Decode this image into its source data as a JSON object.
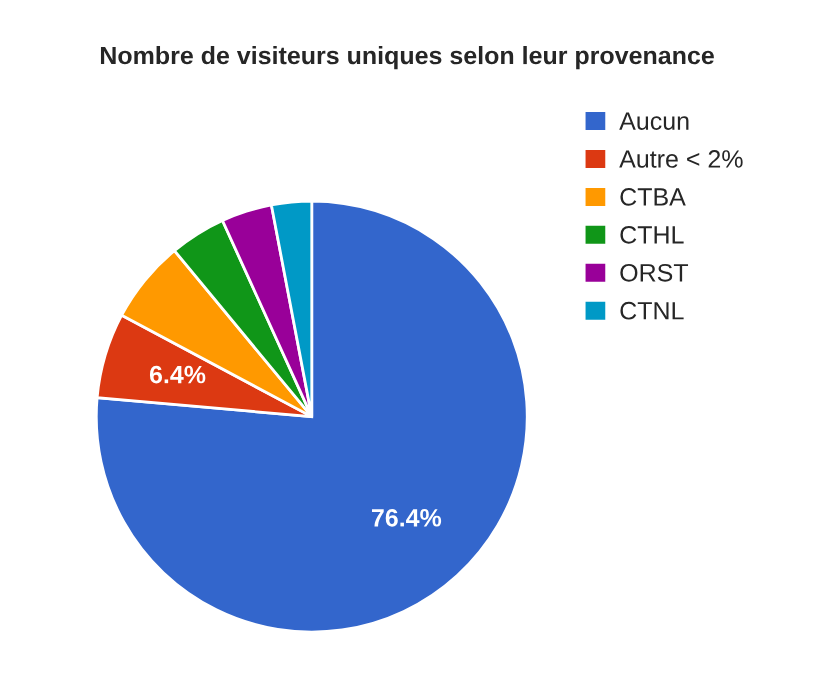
{
  "chart_data": {
    "type": "pie",
    "title": "Nombre de visiteurs uniques selon leur provenance",
    "categories": [
      "Aucun",
      "Autre < 2%",
      "CTBA",
      "CTHL",
      "ORST",
      "CTNL"
    ],
    "values": [
      76.4,
      6.4,
      6.2,
      4.2,
      3.8,
      3.0
    ],
    "value_labels": [
      "76.4%",
      "6.4%",
      null,
      null,
      null,
      null
    ],
    "colors": [
      "#3366cc",
      "#dc3912",
      "#ff9900",
      "#109618",
      "#990099",
      "#0099c6"
    ],
    "legend": "right"
  }
}
